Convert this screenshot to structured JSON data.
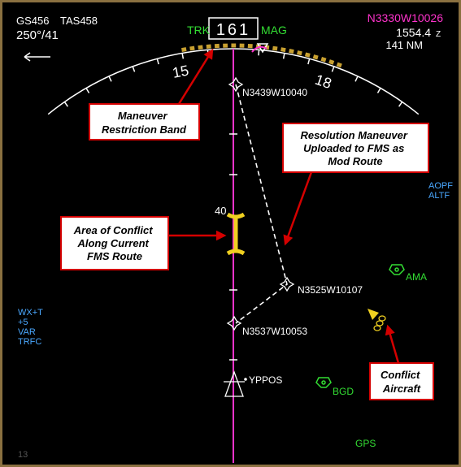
{
  "header": {
    "ground_speed": "GS456",
    "true_airspeed": "TAS458",
    "wind": "250°/41",
    "track_label": "TRK",
    "heading": "161",
    "reference": "MAG",
    "position": "N3330W10026",
    "time": "1554.4",
    "time_zone": "Z",
    "distance": "141 NM"
  },
  "compass": {
    "labels": [
      "15",
      "18"
    ]
  },
  "waypoints": [
    "N3439W10040",
    "N3525W10107",
    "N3537W10053",
    "YPPOS"
  ],
  "altitude_marker": "40",
  "right_status": [
    "AOPF",
    "ALTF"
  ],
  "left_status": [
    "WX+T",
    "+5",
    "VAR",
    "TRFC"
  ],
  "navaids": [
    "AMA",
    "BGD"
  ],
  "nav_source": "GPS",
  "corner": "13",
  "callouts": {
    "restriction_band": [
      "Maneuver",
      "Restriction Band"
    ],
    "resolution": [
      "Resolution Maneuver",
      "Uploaded to FMS as",
      "Mod Route"
    ],
    "conflict_area": [
      "Area of Conflict",
      "Along Current",
      "FMS Route"
    ],
    "conflict_aircraft": [
      "Conflict",
      "Aircraft"
    ]
  }
}
